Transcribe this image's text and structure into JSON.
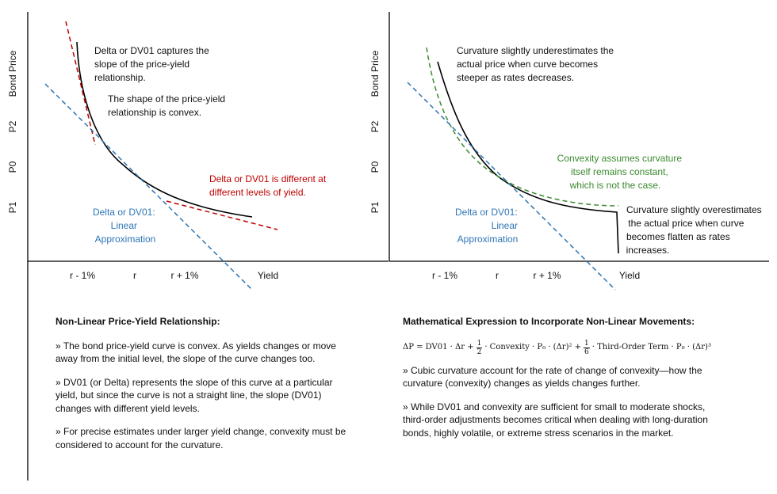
{
  "left_panel": {
    "y_axis_label": "Bond Price",
    "y_ticks": [
      "P2",
      "P0",
      "P1"
    ],
    "x_ticks": [
      "r - 1%",
      "r",
      "r + 1%"
    ],
    "x_axis_label": "Yield",
    "annotations": {
      "delta_captures": [
        "Delta or DV01 captures the",
        "slope of the price-yield",
        "relationship."
      ],
      "shape_convex": [
        "The shape of the price-yield",
        "relationship is convex."
      ],
      "delta_different": [
        "Delta or DV01 is different at",
        "different levels of yield."
      ],
      "linear_approx": [
        "Delta or DV01:",
        "Linear",
        "Approximation"
      ]
    },
    "colors": {
      "curve": "#000000",
      "tangent_blue": "#2e75b6",
      "tangent_red": "#c00000"
    }
  },
  "right_panel": {
    "y_axis_label": "Bond Price",
    "y_ticks": [
      "P2",
      "P0",
      "P1"
    ],
    "x_ticks": [
      "r - 1%",
      "r",
      "r + 1%"
    ],
    "x_axis_label": "Yield",
    "annotations": {
      "underestimates": [
        "Curvature slightly underestimates the",
        "actual price when curve becomes",
        "steeper as rates decreases."
      ],
      "convexity_constant": [
        "Convexity assumes curvature",
        "itself remains constant,",
        "which is not the case."
      ],
      "linear_approx": [
        "Delta or DV01:",
        "Linear",
        "Approximation"
      ],
      "overestimates": [
        "Curvature slightly overestimates",
        "the actual price when curve",
        "becomes flatten as rates",
        "increases."
      ]
    },
    "colors": {
      "curve": "#000000",
      "tangent_blue": "#2e75b6",
      "convexity_green": "#3a8a2e"
    }
  },
  "bottom_left": {
    "heading": "Non-Linear Price-Yield Relationship:",
    "paragraphs": [
      "» The bond price-yield curve is convex. As yields changes or move away from the initial level, the slope of the curve changes too.",
      "» DV01 (or Delta) represents the slope of this curve at a particular yield, but since the curve is not a straight line, the slope (DV01) changes with different yield levels.",
      "» For precise estimates under larger yield change, convexity must be considered to account for the curvature."
    ]
  },
  "bottom_right": {
    "heading": "Mathematical Expression to Incorporate Non-Linear Movements:",
    "formula": {
      "lhs": "ΔP = DV01 · Δr +",
      "frac1_num": "1",
      "frac1_den": "2",
      "mid": "· Convexity · P₀ · (Δr)² +",
      "frac2_num": "1",
      "frac2_den": "6",
      "tail": "· Third-Order Term · P₀ · (Δr)³"
    },
    "paragraphs": [
      "» Cubic curvature account for the rate of change of convexity—how the curvature (convexity) changes as yields changes further.",
      "» While DV01 and convexity are sufficient for small to moderate shocks, third-order adjustments becomes critical when dealing with long-duration bonds, highly volatile, or extreme stress scenarios in the market."
    ]
  }
}
